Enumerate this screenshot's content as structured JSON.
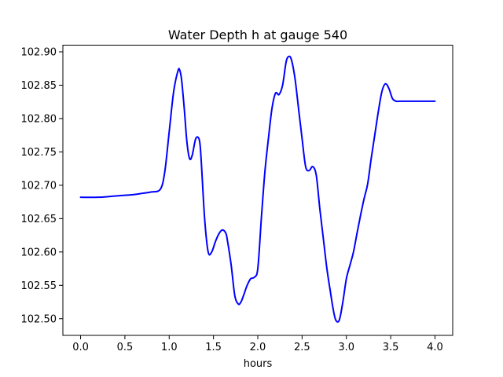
{
  "chart_data": {
    "type": "line",
    "title": "Water Depth h at gauge 540",
    "xlabel": "hours",
    "ylabel": "",
    "xlim": [
      -0.2,
      4.2
    ],
    "ylim": [
      102.475,
      102.91
    ],
    "xticks": [
      "0.0",
      "0.5",
      "1.0",
      "1.5",
      "2.0",
      "2.5",
      "3.0",
      "3.5",
      "4.0"
    ],
    "yticks": [
      "102.50",
      "102.55",
      "102.60",
      "102.65",
      "102.70",
      "102.75",
      "102.80",
      "102.85",
      "102.90"
    ],
    "grid": false,
    "legend": "none",
    "series": [
      {
        "color": "#0000ff",
        "x": [
          0.0,
          0.2,
          0.4,
          0.6,
          0.7,
          0.8,
          0.9,
          0.95,
          1.0,
          1.05,
          1.1,
          1.12,
          1.14,
          1.17,
          1.2,
          1.23,
          1.26,
          1.3,
          1.34,
          1.36,
          1.4,
          1.44,
          1.48,
          1.52,
          1.56,
          1.6,
          1.64,
          1.66,
          1.7,
          1.74,
          1.78,
          1.81,
          1.84,
          1.88,
          1.92,
          1.96,
          2.0,
          2.04,
          2.08,
          2.12,
          2.16,
          2.2,
          2.24,
          2.28,
          2.32,
          2.35,
          2.38,
          2.42,
          2.46,
          2.5,
          2.54,
          2.58,
          2.62,
          2.66,
          2.7,
          2.74,
          2.78,
          2.82,
          2.85,
          2.88,
          2.92,
          2.96,
          3.0,
          3.04,
          3.08,
          3.12,
          3.16,
          3.2,
          3.24,
          3.28,
          3.32,
          3.36,
          3.4,
          3.44,
          3.48,
          3.52,
          3.56,
          3.6,
          3.64,
          3.68,
          3.72,
          3.76,
          3.8,
          3.84,
          3.88,
          3.92,
          3.96,
          4.0
        ],
        "y": [
          102.682,
          102.682,
          102.684,
          102.686,
          102.688,
          102.69,
          102.694,
          102.72,
          102.78,
          102.84,
          102.872,
          102.872,
          102.858,
          102.815,
          102.765,
          102.74,
          102.745,
          102.77,
          102.768,
          102.74,
          102.65,
          102.6,
          102.6,
          102.615,
          102.627,
          102.633,
          102.628,
          102.615,
          102.58,
          102.535,
          102.522,
          102.525,
          102.535,
          102.55,
          102.56,
          102.562,
          102.575,
          102.65,
          102.72,
          102.77,
          102.815,
          102.838,
          102.836,
          102.85,
          102.885,
          102.893,
          102.888,
          102.86,
          102.815,
          102.77,
          102.728,
          102.722,
          102.728,
          102.715,
          102.665,
          102.62,
          102.575,
          102.54,
          102.515,
          102.498,
          102.498,
          102.525,
          102.56,
          102.58,
          102.6,
          102.628,
          102.655,
          102.68,
          102.702,
          102.74,
          102.775,
          102.81,
          102.84,
          102.852,
          102.845,
          102.83,
          102.826,
          102.826,
          102.826,
          102.826,
          102.826,
          102.826,
          102.826,
          102.826,
          102.826,
          102.826,
          102.826,
          102.826
        ]
      }
    ]
  }
}
